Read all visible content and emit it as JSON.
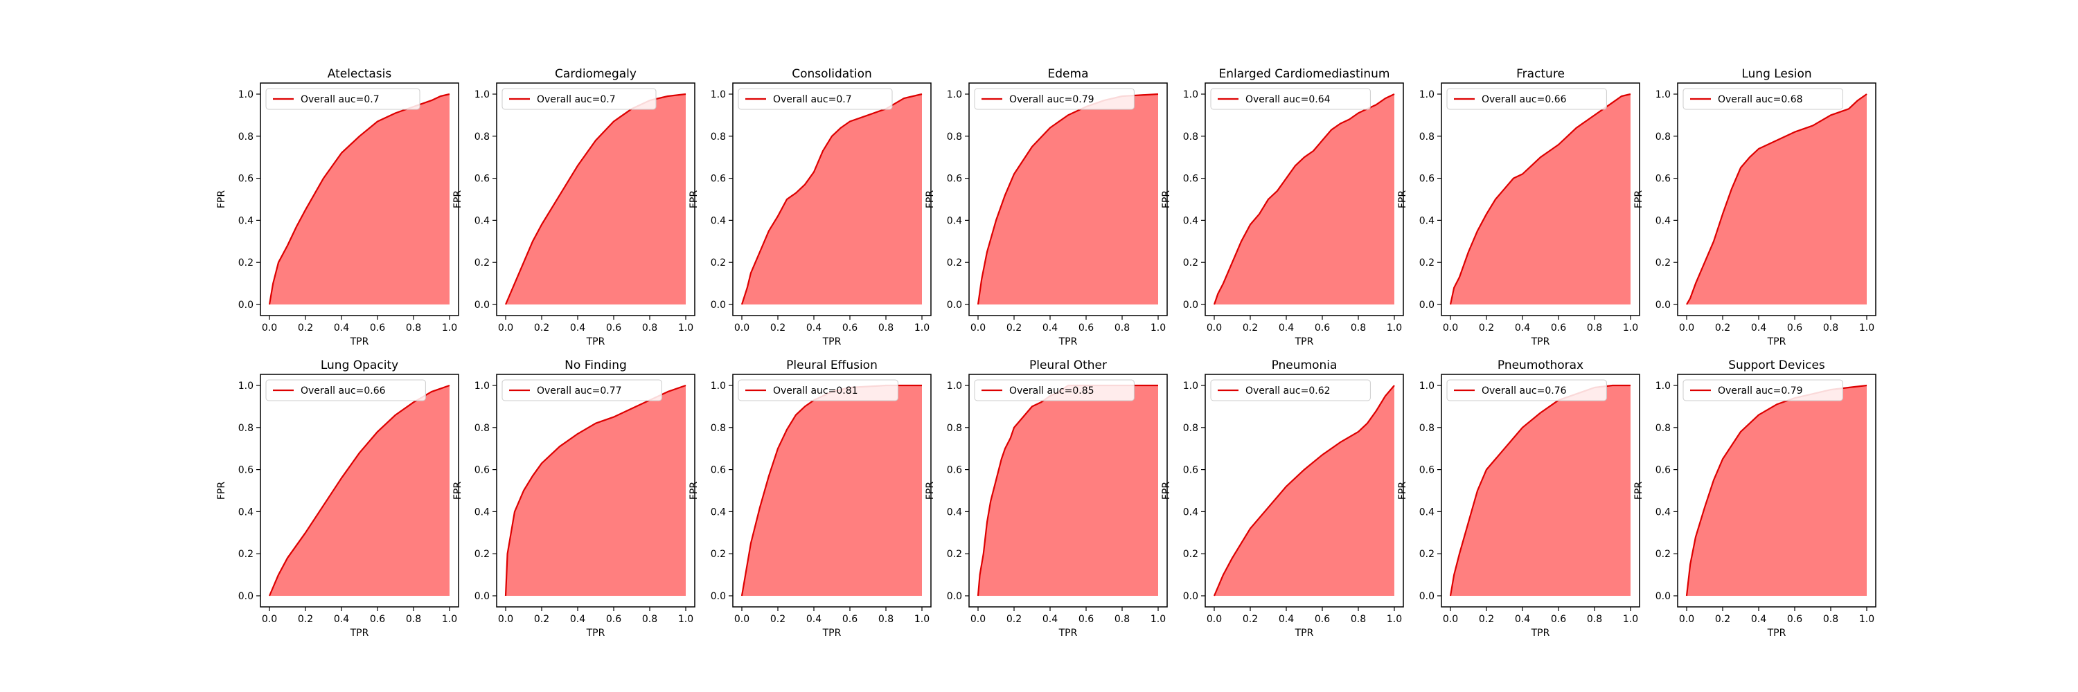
{
  "theme": {
    "line_color": "#dd0000",
    "fill_color": "#ff7f7f",
    "axis_color": "#000000",
    "legend_border": "#cccccc"
  },
  "chart_data": [
    {
      "type": "area",
      "title": "Atelectasis",
      "xlabel": "TPR",
      "ylabel": "FPR",
      "xlim": [
        0.0,
        1.0
      ],
      "ylim": [
        0.0,
        1.0
      ],
      "xticks": [
        "0.0",
        "0.2",
        "0.4",
        "0.6",
        "0.8",
        "1.0"
      ],
      "yticks": [
        "0.0",
        "0.2",
        "0.4",
        "0.6",
        "0.8",
        "1.0"
      ],
      "legend": {
        "label": "Overall auc=0.7",
        "position": "upper left"
      },
      "series": [
        {
          "name": "Overall auc=0.7",
          "x": [
            0,
            0.02,
            0.05,
            0.1,
            0.15,
            0.2,
            0.3,
            0.4,
            0.5,
            0.6,
            0.7,
            0.8,
            0.9,
            0.95,
            1.0
          ],
          "y": [
            0,
            0.1,
            0.2,
            0.28,
            0.37,
            0.45,
            0.6,
            0.72,
            0.8,
            0.87,
            0.91,
            0.94,
            0.97,
            0.99,
            1.0
          ]
        }
      ]
    },
    {
      "type": "area",
      "title": "Cardiomegaly",
      "xlabel": "TPR",
      "ylabel": "FPR",
      "xlim": [
        0.0,
        1.0
      ],
      "ylim": [
        0.0,
        1.0
      ],
      "xticks": [
        "0.0",
        "0.2",
        "0.4",
        "0.6",
        "0.8",
        "1.0"
      ],
      "yticks": [
        "0.0",
        "0.2",
        "0.4",
        "0.6",
        "0.8",
        "1.0"
      ],
      "legend": {
        "label": "Overall auc=0.7",
        "position": "upper left"
      },
      "series": [
        {
          "name": "Overall auc=0.7",
          "x": [
            0,
            0.05,
            0.1,
            0.15,
            0.2,
            0.3,
            0.4,
            0.5,
            0.6,
            0.7,
            0.8,
            0.9,
            1.0
          ],
          "y": [
            0,
            0.1,
            0.2,
            0.3,
            0.38,
            0.52,
            0.66,
            0.78,
            0.87,
            0.93,
            0.97,
            0.99,
            1.0
          ]
        }
      ]
    },
    {
      "type": "area",
      "title": "Consolidation",
      "xlabel": "TPR",
      "ylabel": "FPR",
      "xlim": [
        0.0,
        1.0
      ],
      "ylim": [
        0.0,
        1.0
      ],
      "xticks": [
        "0.0",
        "0.2",
        "0.4",
        "0.6",
        "0.8",
        "1.0"
      ],
      "yticks": [
        "0.0",
        "0.2",
        "0.4",
        "0.6",
        "0.8",
        "1.0"
      ],
      "legend": {
        "label": "Overall auc=0.7",
        "position": "upper left"
      },
      "series": [
        {
          "name": "Overall auc=0.7",
          "x": [
            0,
            0.03,
            0.05,
            0.1,
            0.15,
            0.2,
            0.25,
            0.3,
            0.35,
            0.4,
            0.45,
            0.5,
            0.55,
            0.6,
            0.7,
            0.8,
            0.9,
            0.95,
            1.0
          ],
          "y": [
            0,
            0.08,
            0.15,
            0.25,
            0.35,
            0.42,
            0.5,
            0.53,
            0.57,
            0.63,
            0.73,
            0.8,
            0.84,
            0.87,
            0.9,
            0.93,
            0.98,
            0.99,
            1.0
          ]
        }
      ]
    },
    {
      "type": "area",
      "title": "Edema",
      "xlabel": "TPR",
      "ylabel": "FPR",
      "xlim": [
        0.0,
        1.0
      ],
      "ylim": [
        0.0,
        1.0
      ],
      "xticks": [
        "0.0",
        "0.2",
        "0.4",
        "0.6",
        "0.8",
        "1.0"
      ],
      "yticks": [
        "0.0",
        "0.2",
        "0.4",
        "0.6",
        "0.8",
        "1.0"
      ],
      "legend": {
        "label": "Overall auc=0.79",
        "position": "upper left"
      },
      "series": [
        {
          "name": "Overall auc=0.79",
          "x": [
            0,
            0.02,
            0.05,
            0.1,
            0.15,
            0.2,
            0.3,
            0.4,
            0.5,
            0.6,
            0.7,
            0.8,
            0.9,
            1.0
          ],
          "y": [
            0,
            0.12,
            0.25,
            0.4,
            0.52,
            0.62,
            0.75,
            0.84,
            0.9,
            0.94,
            0.97,
            0.99,
            0.995,
            1.0
          ]
        }
      ]
    },
    {
      "type": "area",
      "title": "Enlarged Cardiomediastinum",
      "xlabel": "TPR",
      "ylabel": "FPR",
      "xlim": [
        0.0,
        1.0
      ],
      "ylim": [
        0.0,
        1.0
      ],
      "xticks": [
        "0.0",
        "0.2",
        "0.4",
        "0.6",
        "0.8",
        "1.0"
      ],
      "yticks": [
        "0.0",
        "0.2",
        "0.4",
        "0.6",
        "0.8",
        "1.0"
      ],
      "legend": {
        "label": "Overall auc=0.64",
        "position": "upper left"
      },
      "series": [
        {
          "name": "Overall auc=0.64",
          "x": [
            0,
            0.02,
            0.05,
            0.1,
            0.15,
            0.2,
            0.25,
            0.3,
            0.35,
            0.4,
            0.45,
            0.5,
            0.55,
            0.6,
            0.65,
            0.7,
            0.75,
            0.8,
            0.85,
            0.9,
            0.95,
            1.0
          ],
          "y": [
            0,
            0.05,
            0.1,
            0.2,
            0.3,
            0.38,
            0.43,
            0.5,
            0.54,
            0.6,
            0.66,
            0.7,
            0.73,
            0.78,
            0.83,
            0.86,
            0.88,
            0.91,
            0.93,
            0.95,
            0.98,
            1.0
          ]
        }
      ]
    },
    {
      "type": "area",
      "title": "Fracture",
      "xlabel": "TPR",
      "ylabel": "FPR",
      "xlim": [
        0.0,
        1.0
      ],
      "ylim": [
        0.0,
        1.0
      ],
      "xticks": [
        "0.0",
        "0.2",
        "0.4",
        "0.6",
        "0.8",
        "1.0"
      ],
      "yticks": [
        "0.0",
        "0.2",
        "0.4",
        "0.6",
        "0.8",
        "1.0"
      ],
      "legend": {
        "label": "Overall auc=0.66",
        "position": "upper left"
      },
      "series": [
        {
          "name": "Overall auc=0.66",
          "x": [
            0,
            0.02,
            0.05,
            0.1,
            0.15,
            0.2,
            0.25,
            0.3,
            0.35,
            0.4,
            0.45,
            0.5,
            0.55,
            0.6,
            0.65,
            0.7,
            0.75,
            0.8,
            0.85,
            0.9,
            0.95,
            1.0
          ],
          "y": [
            0,
            0.08,
            0.13,
            0.25,
            0.35,
            0.43,
            0.5,
            0.55,
            0.6,
            0.62,
            0.66,
            0.7,
            0.73,
            0.76,
            0.8,
            0.84,
            0.87,
            0.9,
            0.93,
            0.96,
            0.99,
            1.0
          ]
        }
      ]
    },
    {
      "type": "area",
      "title": "Lung Lesion",
      "xlabel": "TPR",
      "ylabel": "FPR",
      "xlim": [
        0.0,
        1.0
      ],
      "ylim": [
        0.0,
        1.0
      ],
      "xticks": [
        "0.0",
        "0.2",
        "0.4",
        "0.6",
        "0.8",
        "1.0"
      ],
      "yticks": [
        "0.0",
        "0.2",
        "0.4",
        "0.6",
        "0.8",
        "1.0"
      ],
      "legend": {
        "label": "Overall auc=0.68",
        "position": "upper left"
      },
      "series": [
        {
          "name": "Overall auc=0.68",
          "x": [
            0,
            0.02,
            0.05,
            0.1,
            0.15,
            0.2,
            0.25,
            0.3,
            0.35,
            0.4,
            0.5,
            0.6,
            0.7,
            0.8,
            0.9,
            0.95,
            1.0
          ],
          "y": [
            0,
            0.03,
            0.1,
            0.2,
            0.3,
            0.43,
            0.55,
            0.65,
            0.7,
            0.74,
            0.78,
            0.82,
            0.85,
            0.9,
            0.93,
            0.97,
            1.0
          ]
        }
      ]
    },
    {
      "type": "area",
      "title": "Lung Opacity",
      "xlabel": "TPR",
      "ylabel": "FPR",
      "xlim": [
        0.0,
        1.0
      ],
      "ylim": [
        0.0,
        1.0
      ],
      "xticks": [
        "0.0",
        "0.2",
        "0.4",
        "0.6",
        "0.8",
        "1.0"
      ],
      "yticks": [
        "0.0",
        "0.2",
        "0.4",
        "0.6",
        "0.8",
        "1.0"
      ],
      "legend": {
        "label": "Overall auc=0.66",
        "position": "upper left"
      },
      "series": [
        {
          "name": "Overall auc=0.66",
          "x": [
            0,
            0.05,
            0.1,
            0.2,
            0.3,
            0.4,
            0.5,
            0.6,
            0.7,
            0.8,
            0.9,
            1.0
          ],
          "y": [
            0,
            0.1,
            0.18,
            0.3,
            0.43,
            0.56,
            0.68,
            0.78,
            0.86,
            0.92,
            0.97,
            1.0
          ]
        }
      ]
    },
    {
      "type": "area",
      "title": "No Finding",
      "xlabel": "TPR",
      "ylabel": "FPR",
      "xlim": [
        0.0,
        1.0
      ],
      "ylim": [
        0.0,
        1.0
      ],
      "xticks": [
        "0.0",
        "0.2",
        "0.4",
        "0.6",
        "0.8",
        "1.0"
      ],
      "yticks": [
        "0.0",
        "0.2",
        "0.4",
        "0.6",
        "0.8",
        "1.0"
      ],
      "legend": {
        "label": "Overall auc=0.77",
        "position": "upper left"
      },
      "series": [
        {
          "name": "Overall auc=0.77",
          "x": [
            0,
            0.01,
            0.03,
            0.05,
            0.1,
            0.15,
            0.2,
            0.3,
            0.4,
            0.5,
            0.6,
            0.7,
            0.8,
            0.9,
            1.0
          ],
          "y": [
            0,
            0.2,
            0.3,
            0.4,
            0.5,
            0.57,
            0.63,
            0.71,
            0.77,
            0.82,
            0.85,
            0.89,
            0.93,
            0.97,
            1.0
          ]
        }
      ]
    },
    {
      "type": "area",
      "title": "Pleural Effusion",
      "xlabel": "TPR",
      "ylabel": "FPR",
      "xlim": [
        0.0,
        1.0
      ],
      "ylim": [
        0.0,
        1.0
      ],
      "xticks": [
        "0.0",
        "0.2",
        "0.4",
        "0.6",
        "0.8",
        "1.0"
      ],
      "yticks": [
        "0.0",
        "0.2",
        "0.4",
        "0.6",
        "0.8",
        "1.0"
      ],
      "legend": {
        "label": "Overall auc=0.81",
        "position": "upper left"
      },
      "series": [
        {
          "name": "Overall auc=0.81",
          "x": [
            0,
            0.02,
            0.05,
            0.1,
            0.15,
            0.2,
            0.25,
            0.3,
            0.35,
            0.4,
            0.5,
            0.6,
            0.7,
            0.8,
            0.9,
            1.0
          ],
          "y": [
            0,
            0.1,
            0.25,
            0.42,
            0.57,
            0.7,
            0.79,
            0.86,
            0.9,
            0.93,
            0.97,
            0.99,
            0.995,
            1.0,
            1.0,
            1.0
          ]
        }
      ]
    },
    {
      "type": "area",
      "title": "Pleural Other",
      "xlabel": "TPR",
      "ylabel": "FPR",
      "xlim": [
        0.0,
        1.0
      ],
      "ylim": [
        0.0,
        1.0
      ],
      "xticks": [
        "0.0",
        "0.2",
        "0.4",
        "0.6",
        "0.8",
        "1.0"
      ],
      "yticks": [
        "0.0",
        "0.2",
        "0.4",
        "0.6",
        "0.8",
        "1.0"
      ],
      "legend": {
        "label": "Overall auc=0.85",
        "position": "upper left"
      },
      "series": [
        {
          "name": "Overall auc=0.85",
          "x": [
            0,
            0.01,
            0.03,
            0.05,
            0.07,
            0.1,
            0.13,
            0.15,
            0.18,
            0.2,
            0.25,
            0.3,
            0.35,
            0.4,
            0.45,
            0.5,
            0.6,
            0.7,
            0.8,
            0.9,
            1.0
          ],
          "y": [
            0,
            0.1,
            0.2,
            0.35,
            0.45,
            0.55,
            0.65,
            0.7,
            0.75,
            0.8,
            0.85,
            0.9,
            0.92,
            0.95,
            0.97,
            1.0,
            1.0,
            1.0,
            1.0,
            1.0,
            1.0
          ]
        }
      ]
    },
    {
      "type": "area",
      "title": "Pneumonia",
      "xlabel": "TPR",
      "ylabel": "FPR",
      "xlim": [
        0.0,
        1.0
      ],
      "ylim": [
        0.0,
        1.0
      ],
      "xticks": [
        "0.0",
        "0.2",
        "0.4",
        "0.6",
        "0.8",
        "1.0"
      ],
      "yticks": [
        "0.0",
        "0.2",
        "0.4",
        "0.6",
        "0.8",
        "1.0"
      ],
      "legend": {
        "label": "Overall auc=0.62",
        "position": "upper left"
      },
      "series": [
        {
          "name": "Overall auc=0.62",
          "x": [
            0,
            0.05,
            0.1,
            0.2,
            0.3,
            0.4,
            0.5,
            0.6,
            0.7,
            0.8,
            0.85,
            0.9,
            0.95,
            1.0
          ],
          "y": [
            0,
            0.1,
            0.18,
            0.32,
            0.42,
            0.52,
            0.6,
            0.67,
            0.73,
            0.78,
            0.82,
            0.88,
            0.95,
            1.0
          ]
        }
      ]
    },
    {
      "type": "area",
      "title": "Pneumothorax",
      "xlabel": "TPR",
      "ylabel": "FPR",
      "xlim": [
        0.0,
        1.0
      ],
      "ylim": [
        0.0,
        1.0
      ],
      "xticks": [
        "0.0",
        "0.2",
        "0.4",
        "0.6",
        "0.8",
        "1.0"
      ],
      "yticks": [
        "0.0",
        "0.2",
        "0.4",
        "0.6",
        "0.8",
        "1.0"
      ],
      "legend": {
        "label": "Overall auc=0.76",
        "position": "upper left"
      },
      "series": [
        {
          "name": "Overall auc=0.76",
          "x": [
            0,
            0.02,
            0.05,
            0.1,
            0.15,
            0.2,
            0.25,
            0.3,
            0.35,
            0.4,
            0.5,
            0.6,
            0.7,
            0.8,
            0.9,
            1.0
          ],
          "y": [
            0,
            0.1,
            0.2,
            0.35,
            0.5,
            0.6,
            0.65,
            0.7,
            0.75,
            0.8,
            0.87,
            0.93,
            0.96,
            0.99,
            1.0,
            1.0
          ]
        }
      ]
    },
    {
      "type": "area",
      "title": "Support Devices",
      "xlabel": "TPR",
      "ylabel": "FPR",
      "xlim": [
        0.0,
        1.0
      ],
      "ylim": [
        0.0,
        1.0
      ],
      "xticks": [
        "0.0",
        "0.2",
        "0.4",
        "0.6",
        "0.8",
        "1.0"
      ],
      "yticks": [
        "0.0",
        "0.2",
        "0.4",
        "0.6",
        "0.8",
        "1.0"
      ],
      "legend": {
        "label": "Overall auc=0.79",
        "position": "upper left"
      },
      "series": [
        {
          "name": "Overall auc=0.79",
          "x": [
            0,
            0.02,
            0.05,
            0.1,
            0.15,
            0.2,
            0.3,
            0.4,
            0.5,
            0.6,
            0.7,
            0.8,
            0.9,
            1.0
          ],
          "y": [
            0,
            0.15,
            0.28,
            0.42,
            0.55,
            0.65,
            0.78,
            0.86,
            0.91,
            0.94,
            0.96,
            0.98,
            0.99,
            1.0
          ]
        }
      ]
    }
  ]
}
